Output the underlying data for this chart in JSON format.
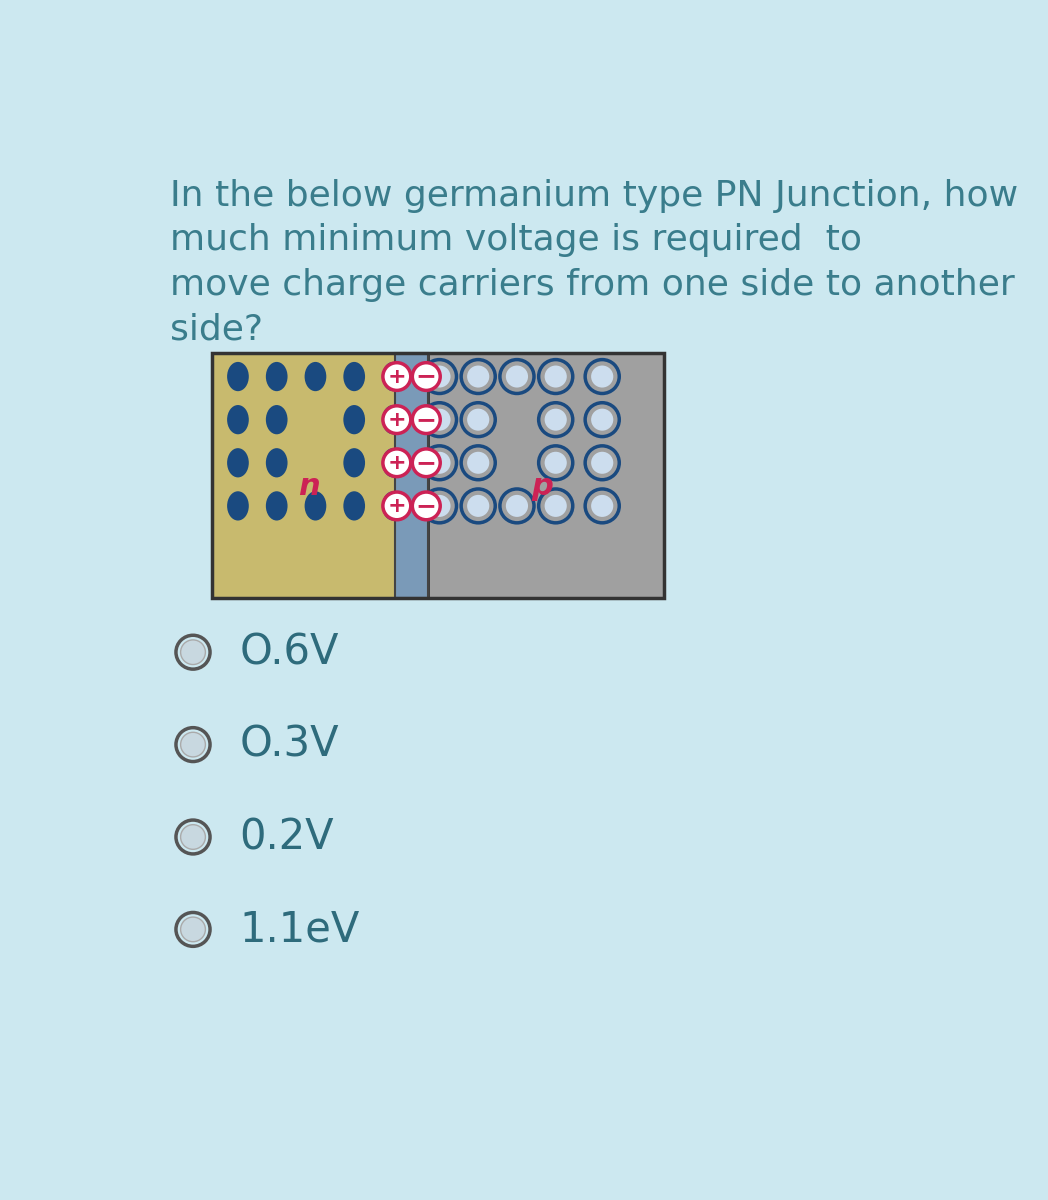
{
  "bg_color": "#cce8f0",
  "question_text": "In the below germanium type PN Junction, how\nmuch minimum voltage is required  to\nmove charge carriers from one side to another\nside?",
  "question_color": "#3a7d8c",
  "question_fontsize": 26,
  "options": [
    "O.6V",
    "O.3V",
    "0.2V",
    "1.1eV"
  ],
  "option_color": "#2e6b7c",
  "option_fontsize": 30,
  "n_side_color": "#c8ba6e",
  "p_side_color": "#a0a0a0",
  "junction_color": "#7a9ab8",
  "electron_color": "#1a4a80",
  "hole_fill_color": "#a0a0a0",
  "hole_edge_color": "#1a4a80",
  "plus_color": "#cc2255",
  "minus_color": "#cc2255",
  "pm_fill": "#ffffff",
  "label_color": "#cc2255",
  "radio_edge": "#555555",
  "radio_fill": "#c8d8e0"
}
